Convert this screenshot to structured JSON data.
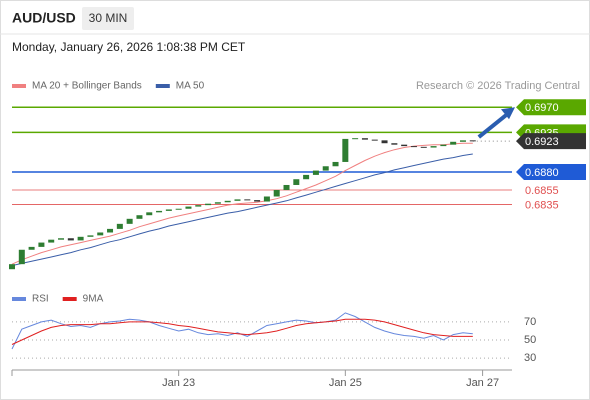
{
  "header": {
    "symbol": "AUD/USD",
    "interval": "30 MIN",
    "timestamp": "Monday, January 26, 2026 1:08:38 PM CET"
  },
  "chart_data": [
    {
      "type": "candlestick",
      "credit": "Research © 2026 Trading Central",
      "up_color": "#2e7d32",
      "down_color": "#333333",
      "open": [
        0.6745,
        0.6752,
        0.6772,
        0.6776,
        0.6782,
        0.6786,
        0.6788,
        0.6785,
        0.679,
        0.6792,
        0.6796,
        0.6801,
        0.6808,
        0.6815,
        0.682,
        0.6824,
        0.6826,
        0.6828,
        0.6829,
        0.6832,
        0.6834,
        0.6836,
        0.6838,
        0.684,
        0.6842,
        0.6841,
        0.6839,
        0.6846,
        0.6855,
        0.6862,
        0.687,
        0.6876,
        0.6882,
        0.6888,
        0.6894,
        0.6926,
        0.6927,
        0.6925,
        0.6924,
        0.692,
        0.6918,
        0.6916,
        0.6915,
        0.6914,
        0.6916,
        0.6918,
        0.6922,
        0.6924
      ],
      "close": [
        0.6752,
        0.6772,
        0.6776,
        0.6782,
        0.6786,
        0.6788,
        0.6785,
        0.679,
        0.6792,
        0.6796,
        0.6801,
        0.6808,
        0.6815,
        0.682,
        0.6824,
        0.6826,
        0.6828,
        0.6829,
        0.6832,
        0.6834,
        0.6836,
        0.6838,
        0.684,
        0.6842,
        0.6841,
        0.6839,
        0.6846,
        0.6855,
        0.6862,
        0.687,
        0.6876,
        0.6882,
        0.6888,
        0.6894,
        0.6926,
        0.6927,
        0.6925,
        0.6924,
        0.692,
        0.6918,
        0.6916,
        0.6915,
        0.6914,
        0.6916,
        0.6918,
        0.6922,
        0.6924,
        0.6923
      ],
      "series": [
        {
          "name": "MA 20 + Bollinger Bands",
          "color": "#f08080",
          "values": [
            0.6752,
            0.6758,
            0.6763,
            0.6768,
            0.6772,
            0.6776,
            0.6779,
            0.6782,
            0.6785,
            0.6788,
            0.6791,
            0.6795,
            0.6799,
            0.6804,
            0.6808,
            0.6812,
            0.6816,
            0.6819,
            0.6822,
            0.6825,
            0.6828,
            0.6831,
            0.6834,
            0.6836,
            0.6837,
            0.6838,
            0.684,
            0.6843,
            0.6847,
            0.6852,
            0.6857,
            0.6862,
            0.6868,
            0.6874,
            0.6882,
            0.6889,
            0.6896,
            0.6902,
            0.6907,
            0.6911,
            0.6914,
            0.6916,
            0.6917,
            0.6918,
            0.6918,
            0.6919,
            0.692,
            0.692
          ]
        },
        {
          "name": "MA 50",
          "color": "#3a5ea8",
          "values": [
            0.675,
            0.6753,
            0.6756,
            0.6759,
            0.6762,
            0.6765,
            0.6768,
            0.6772,
            0.6775,
            0.6779,
            0.6783,
            0.6786,
            0.679,
            0.6794,
            0.6798,
            0.6801,
            0.6805,
            0.6808,
            0.6811,
            0.6814,
            0.6817,
            0.682,
            0.6823,
            0.6825,
            0.6828,
            0.6831,
            0.6834,
            0.6837,
            0.684,
            0.6844,
            0.6848,
            0.6852,
            0.6856,
            0.686,
            0.6864,
            0.6868,
            0.6872,
            0.6876,
            0.6879,
            0.6883,
            0.6886,
            0.6889,
            0.6892,
            0.6895,
            0.6898,
            0.69,
            0.6903,
            0.6905
          ]
        }
      ],
      "levels": [
        {
          "value": 0.697,
          "label": "0.6970",
          "color": "#5aa800",
          "boxed": true
        },
        {
          "value": 0.6935,
          "label": "0.6935",
          "color": "#5aa800",
          "boxed": true
        },
        {
          "value": 0.6923,
          "label": "0.6923",
          "color": "#333333",
          "boxed": true
        },
        {
          "value": 0.688,
          "label": "0.6880",
          "color": "#1f5bd6",
          "boxed": true
        },
        {
          "value": 0.6855,
          "label": "0.6855",
          "color": "#e05050",
          "boxed": false
        },
        {
          "value": 0.6835,
          "label": "0.6835",
          "color": "#e05050",
          "boxed": false
        }
      ],
      "xlim": [
        0,
        51
      ],
      "ylim": [
        0.673,
        0.6987
      ]
    },
    {
      "type": "line",
      "series": [
        {
          "name": "RSI",
          "color": "#6688dd",
          "values": [
            40,
            62,
            66,
            70,
            72,
            68,
            65,
            66,
            64,
            68,
            70,
            71,
            73,
            72,
            70,
            66,
            63,
            60,
            62,
            58,
            56,
            57,
            55,
            58,
            54,
            60,
            66,
            68,
            70,
            72,
            71,
            69,
            70,
            72,
            80,
            76,
            70,
            64,
            60,
            57,
            55,
            54,
            52,
            55,
            50,
            56,
            58,
            57
          ]
        },
        {
          "name": "9MA",
          "color": "#e02020",
          "values": [
            45,
            50,
            55,
            60,
            64,
            66,
            67,
            67,
            67,
            68,
            68,
            69,
            70,
            70,
            70,
            69,
            68,
            66,
            65,
            63,
            61,
            59,
            58,
            57,
            56,
            57,
            58,
            60,
            63,
            66,
            68,
            69,
            70,
            71,
            73,
            73,
            73,
            72,
            70,
            67,
            64,
            61,
            58,
            56,
            55,
            54,
            54,
            54
          ]
        }
      ],
      "xlim": [
        0,
        51
      ],
      "ylim": [
        19,
        81
      ],
      "yticks": [
        70,
        50,
        30
      ],
      "xticks": [
        {
          "value": 17,
          "label": "Jan 23"
        },
        {
          "value": 34,
          "label": "Jan 25"
        },
        {
          "value": 48,
          "label": "Jan 27"
        }
      ]
    }
  ]
}
